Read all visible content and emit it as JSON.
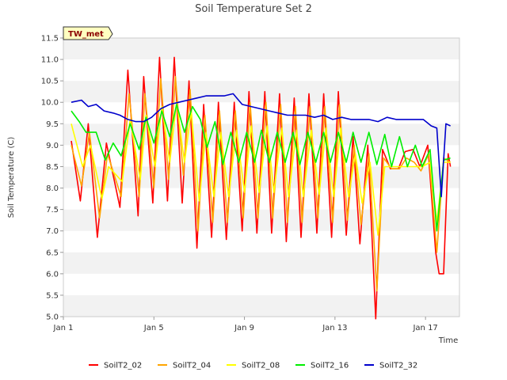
{
  "chart_data": {
    "type": "line",
    "title": "Soil Temperature Set 2",
    "xlabel": "Time",
    "ylabel": "Soil Temperature (C)",
    "station_label": "TW_met",
    "x_unit": "day of January",
    "xlim": [
      1,
      18.5
    ],
    "ylim": [
      5.0,
      11.5
    ],
    "x_ticks": [
      {
        "value": 1,
        "label": "Jan 1"
      },
      {
        "value": 5,
        "label": "Jan 5"
      },
      {
        "value": 9,
        "label": "Jan 9"
      },
      {
        "value": 13,
        "label": "Jan 13"
      },
      {
        "value": 17,
        "label": "Jan 17"
      }
    ],
    "y_ticks": [
      "5.0",
      "5.5",
      "6.0",
      "6.5",
      "7.0",
      "7.5",
      "8.0",
      "8.5",
      "9.0",
      "9.5",
      "10.0",
      "10.5",
      "11.0",
      "11.5"
    ],
    "grid": "horizontal alternating bands",
    "legend_position": "bottom",
    "series": [
      {
        "name": "SoilT2_02",
        "color": "#ff0000",
        "x": [
          1.35,
          1.75,
          2.1,
          2.5,
          2.9,
          3.5,
          3.85,
          4.3,
          4.55,
          4.95,
          5.25,
          5.6,
          5.9,
          6.25,
          6.55,
          6.9,
          7.2,
          7.55,
          7.85,
          8.2,
          8.55,
          8.9,
          9.2,
          9.55,
          9.9,
          10.2,
          10.55,
          10.85,
          11.2,
          11.5,
          11.85,
          12.2,
          12.5,
          12.85,
          13.15,
          13.5,
          13.8,
          14.1,
          14.45,
          14.8,
          15.1,
          15.45,
          15.8,
          16.1,
          16.45,
          16.75,
          17.1,
          17.45,
          17.6,
          17.8,
          18.0,
          18.1
        ],
        "y": [
          9.1,
          7.7,
          9.5,
          6.85,
          9.05,
          7.55,
          10.75,
          7.35,
          10.6,
          7.65,
          11.05,
          7.7,
          11.05,
          7.65,
          10.5,
          6.6,
          9.95,
          6.85,
          10.0,
          6.8,
          10.0,
          7.0,
          10.25,
          6.95,
          10.25,
          6.95,
          10.2,
          6.75,
          10.1,
          6.85,
          10.2,
          6.95,
          10.2,
          6.85,
          10.25,
          6.9,
          9.2,
          6.7,
          9.0,
          4.95,
          8.9,
          8.45,
          8.45,
          8.85,
          8.9,
          8.5,
          9.0,
          6.5,
          6.0,
          6.0,
          8.8,
          8.5
        ]
      },
      {
        "name": "SoilT2_04",
        "color": "#ffa500",
        "x": [
          1.35,
          1.8,
          2.15,
          2.6,
          2.95,
          3.55,
          3.9,
          4.35,
          4.6,
          5.0,
          5.3,
          5.65,
          5.95,
          6.3,
          6.6,
          6.95,
          7.25,
          7.6,
          7.9,
          8.25,
          8.6,
          8.95,
          9.25,
          9.6,
          9.95,
          10.25,
          10.6,
          10.9,
          11.25,
          11.55,
          11.9,
          12.25,
          12.55,
          12.9,
          13.2,
          13.55,
          13.85,
          14.15,
          14.5,
          14.85,
          15.15,
          15.5,
          15.85,
          16.15,
          16.5,
          16.8,
          17.15,
          17.5,
          17.8,
          18.1
        ],
        "y": [
          9.0,
          8.05,
          9.3,
          7.3,
          8.8,
          7.8,
          10.2,
          7.8,
          10.2,
          8.0,
          10.55,
          8.2,
          10.6,
          8.3,
          10.3,
          7.0,
          9.7,
          7.2,
          9.8,
          7.2,
          9.8,
          7.3,
          10.0,
          7.3,
          10.0,
          7.3,
          9.95,
          7.2,
          9.9,
          7.2,
          9.9,
          7.3,
          9.9,
          7.2,
          9.95,
          7.25,
          9.0,
          7.15,
          8.8,
          5.6,
          8.7,
          8.45,
          8.45,
          8.7,
          8.6,
          8.4,
          8.8,
          6.5,
          8.7,
          8.6
        ]
      },
      {
        "name": "SoilT2_08",
        "color": "#ffff00",
        "x": [
          1.35,
          1.85,
          2.2,
          2.7,
          3.0,
          3.6,
          3.95,
          4.4,
          4.65,
          5.05,
          5.35,
          5.7,
          6.0,
          6.35,
          6.65,
          7.0,
          7.3,
          7.65,
          7.95,
          8.3,
          8.65,
          9.0,
          9.3,
          9.65,
          10.0,
          10.3,
          10.65,
          10.95,
          11.3,
          11.6,
          11.95,
          12.3,
          12.6,
          12.95,
          13.25,
          13.6,
          13.9,
          14.2,
          14.55,
          14.9,
          15.2,
          15.55,
          15.9,
          16.2,
          16.55,
          16.85,
          17.2,
          17.5,
          17.8,
          18.1
        ],
        "y": [
          9.5,
          8.5,
          9.0,
          7.75,
          8.5,
          8.15,
          9.6,
          8.2,
          9.7,
          8.5,
          9.9,
          8.6,
          10.0,
          8.6,
          9.8,
          7.7,
          9.3,
          7.8,
          9.3,
          7.8,
          9.35,
          7.9,
          9.45,
          7.9,
          9.45,
          7.9,
          9.4,
          7.8,
          9.35,
          7.8,
          9.35,
          7.85,
          9.4,
          7.8,
          9.4,
          7.8,
          8.8,
          7.65,
          8.6,
          6.9,
          8.5,
          8.5,
          8.5,
          8.5,
          8.5,
          8.5,
          8.6,
          7.2,
          8.6,
          8.6
        ]
      },
      {
        "name": "SoilT2_16",
        "color": "#00ee00",
        "x": [
          1.35,
          1.7,
          2.0,
          2.45,
          2.85,
          3.2,
          3.55,
          3.95,
          4.35,
          4.65,
          5.0,
          5.35,
          5.7,
          6.0,
          6.35,
          6.7,
          7.05,
          7.35,
          7.7,
          8.05,
          8.4,
          8.75,
          9.1,
          9.45,
          9.75,
          10.1,
          10.45,
          10.8,
          11.15,
          11.45,
          11.8,
          12.15,
          12.5,
          12.8,
          13.15,
          13.5,
          13.8,
          14.15,
          14.5,
          14.85,
          15.2,
          15.5,
          15.85,
          16.2,
          16.55,
          16.85,
          17.2,
          17.5,
          17.8,
          18.1
        ],
        "y": [
          9.8,
          9.55,
          9.3,
          9.3,
          8.65,
          9.05,
          8.75,
          9.5,
          8.9,
          9.65,
          9.05,
          9.8,
          9.2,
          9.95,
          9.3,
          9.9,
          9.6,
          8.95,
          9.55,
          8.55,
          9.3,
          8.6,
          9.3,
          8.6,
          9.35,
          8.6,
          9.3,
          8.6,
          9.3,
          8.55,
          9.3,
          8.6,
          9.3,
          8.6,
          9.3,
          8.6,
          9.3,
          8.6,
          9.3,
          8.55,
          9.25,
          8.5,
          9.2,
          8.5,
          9.0,
          8.5,
          8.9,
          7.0,
          8.65,
          8.7
        ]
      },
      {
        "name": "SoilT2_32",
        "color": "#0000cc",
        "x": [
          1.35,
          1.8,
          2.1,
          2.45,
          2.8,
          3.2,
          3.5,
          3.85,
          4.2,
          4.55,
          4.9,
          5.3,
          5.7,
          6.1,
          6.5,
          6.9,
          7.3,
          7.7,
          8.1,
          8.5,
          8.9,
          9.3,
          9.7,
          10.1,
          10.5,
          10.9,
          11.3,
          11.7,
          12.1,
          12.5,
          12.9,
          13.3,
          13.7,
          14.1,
          14.5,
          14.9,
          15.3,
          15.7,
          16.1,
          16.5,
          16.9,
          17.25,
          17.5,
          17.7,
          17.9,
          18.1
        ],
        "y": [
          10.0,
          10.05,
          9.9,
          9.95,
          9.8,
          9.75,
          9.7,
          9.6,
          9.55,
          9.55,
          9.65,
          9.85,
          9.95,
          10.0,
          10.05,
          10.1,
          10.15,
          10.15,
          10.15,
          10.2,
          9.95,
          9.9,
          9.85,
          9.8,
          9.75,
          9.7,
          9.7,
          9.7,
          9.65,
          9.7,
          9.6,
          9.65,
          9.6,
          9.6,
          9.6,
          9.55,
          9.65,
          9.6,
          9.6,
          9.6,
          9.6,
          9.45,
          9.4,
          7.8,
          9.5,
          9.45
        ]
      }
    ]
  }
}
